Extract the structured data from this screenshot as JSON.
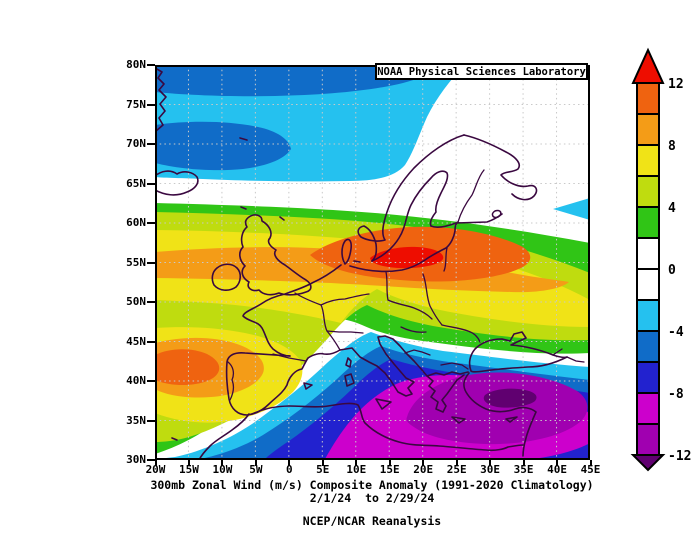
{
  "header": {
    "lab_label": "NOAA Physical Sciences Laboratory"
  },
  "titles": {
    "line1": "300mb Zonal Wind (m/s) Composite Anomaly (1991-2020 Climatology)",
    "line2": "2/1/24  to 2/29/24",
    "line3": "NCEP/NCAR Reanalysis"
  },
  "axes": {
    "lat_ticks": [
      "80N",
      "75N",
      "70N",
      "65N",
      "60N",
      "55N",
      "50N",
      "45N",
      "40N",
      "35N",
      "30N"
    ],
    "lon_ticks": [
      "20W",
      "15W",
      "10W",
      "5W",
      "0",
      "5E",
      "10E",
      "15E",
      "20E",
      "25E",
      "30E",
      "35E",
      "40E",
      "45E"
    ]
  },
  "colorbar": {
    "tick_labels": [
      "12",
      "8",
      "4",
      "0",
      "-4",
      "-8",
      "-12"
    ],
    "arrow_top": {
      "range": "> 12",
      "color": "#EE0D00"
    },
    "arrow_bottom": {
      "range": "< -12",
      "color": "#600070"
    },
    "segments": [
      {
        "range": "10 to 12",
        "color": "#EF6310"
      },
      {
        "range": "8 to 10",
        "color": "#F49C17"
      },
      {
        "range": "6 to 8",
        "color": "#F0E317"
      },
      {
        "range": "4 to 6",
        "color": "#BFDC0F"
      },
      {
        "range": "2 to 4",
        "color": "#30C516"
      },
      {
        "range": "0 to 2",
        "color": "#FFFFFF"
      },
      {
        "range": "-2 to 0",
        "color": "#FFFFFF"
      },
      {
        "range": "-4 to -2",
        "color": "#25C1EF"
      },
      {
        "range": "-6 to -4",
        "color": "#106CC8"
      },
      {
        "range": "-8 to -6",
        "color": "#2222CF"
      },
      {
        "range": "-10 to -8",
        "color": "#CC00CC"
      },
      {
        "range": "-12 to -10",
        "color": "#A000B0"
      }
    ]
  },
  "palette": {
    "red": "#EE0D00",
    "darkorange": "#EF6310",
    "orange": "#F49C17",
    "yellow": "#F0E317",
    "yellowgreen": "#BFDC0F",
    "green": "#30C516",
    "cyan": "#25C1EF",
    "blue": "#106CC8",
    "indigo": "#2222CF",
    "magenta": "#CC00CC",
    "purple": "#A000B0",
    "darkpurple": "#600070",
    "coast": "#3A0840",
    "grid": "#C9C9C9",
    "frame": "#000000"
  },
  "chart_data": {
    "type": "heatmap",
    "title": "300mb Zonal Wind (m/s) Composite Anomaly (1991-2020 Climatology)",
    "date_range": "2/1/24 to 2/29/24",
    "source": "NCEP/NCAR Reanalysis",
    "provider": "NOAA Physical Sciences Laboratory",
    "units": "m/s",
    "x_axis": {
      "label": "longitude",
      "range": [
        "20W",
        "45E"
      ],
      "tick_interval_deg": 5,
      "ticks": [
        "20W",
        "15W",
        "10W",
        "5W",
        "0",
        "5E",
        "10E",
        "15E",
        "20E",
        "25E",
        "30E",
        "35E",
        "40E",
        "45E"
      ]
    },
    "y_axis": {
      "label": "latitude",
      "range": [
        "30N",
        "80N"
      ],
      "tick_interval_deg": 5,
      "ticks": [
        "80N",
        "75N",
        "70N",
        "65N",
        "60N",
        "55N",
        "50N",
        "45N",
        "40N",
        "35N",
        "30N"
      ]
    },
    "contour_interval": 2,
    "colorbar_range": [
      -12,
      12
    ],
    "levels": [
      -12,
      -10,
      -8,
      -6,
      -4,
      -2,
      0,
      2,
      4,
      6,
      8,
      10,
      12
    ],
    "grid": "dotted, every 5 degrees",
    "legend_position": "right colorbar",
    "features": [
      {
        "feature": "primary positive anomaly maximum",
        "location": "Baltic Sea / N Poland (~15E, 55N)",
        "value_m_s": "> 12"
      },
      {
        "feature": "positive anomaly band",
        "location": "west-east across Europe ~48N-62N from 20W to 45E",
        "value_m_s": "2 to 12"
      },
      {
        "feature": "secondary positive maximum",
        "location": "NE Atlantic west of Iberia (~17W, 41N)",
        "value_m_s": "10 to 12"
      },
      {
        "feature": "negative anomaly minimum",
        "location": "central Turkey (~33E, 38N)",
        "value_m_s": "< -12"
      },
      {
        "feature": "negative anomaly region",
        "location": "E Mediterranean / Balkans / Black Sea / N Africa",
        "value_m_s": "-2 to -12"
      },
      {
        "feature": "northern negative band",
        "location": "Norwegian Sea / Arctic (~70N-80N)",
        "value_m_s": "-2 to -8"
      },
      {
        "feature": "near-zero region",
        "location": "Scandinavia / NW Russia (~62N-72N)",
        "value_m_s": "-2 to 2"
      }
    ]
  }
}
